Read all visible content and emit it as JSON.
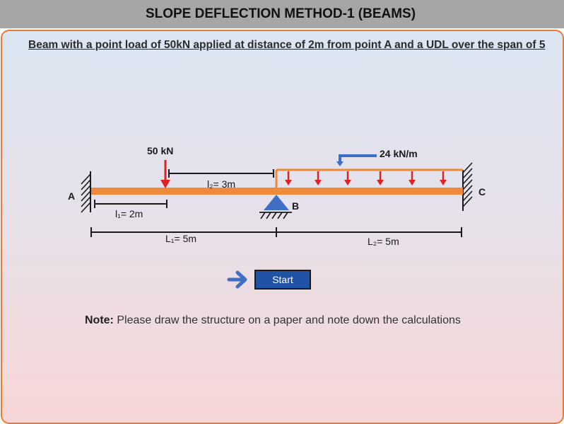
{
  "header": {
    "title": "SLOPE DEFLECTION METHOD-1 (BEAMS)"
  },
  "heading": "Beam with a point load of 50kN applied at distance of 2m from point A and a UDL over the span of 5",
  "diagram": {
    "point_load": "50 kN",
    "udl": "24 kN/m",
    "label_a": "A",
    "label_b": "B",
    "label_c": "C",
    "dim_l1": "l₁= 2m",
    "dim_l2": "l₂= 3m",
    "span_L1": "L₁= 5m",
    "span_L2": "L₂= 5m"
  },
  "controls": {
    "start_label": "Start"
  },
  "note": {
    "label": "Note:",
    "text": " Please draw the structure on a paper and note down the calculations"
  },
  "colors": {
    "beam": "#ee8a3a",
    "support": "#3f6fc4",
    "load_arrow": "#e32020",
    "button": "#2052a6",
    "border": "#ee7a30"
  }
}
